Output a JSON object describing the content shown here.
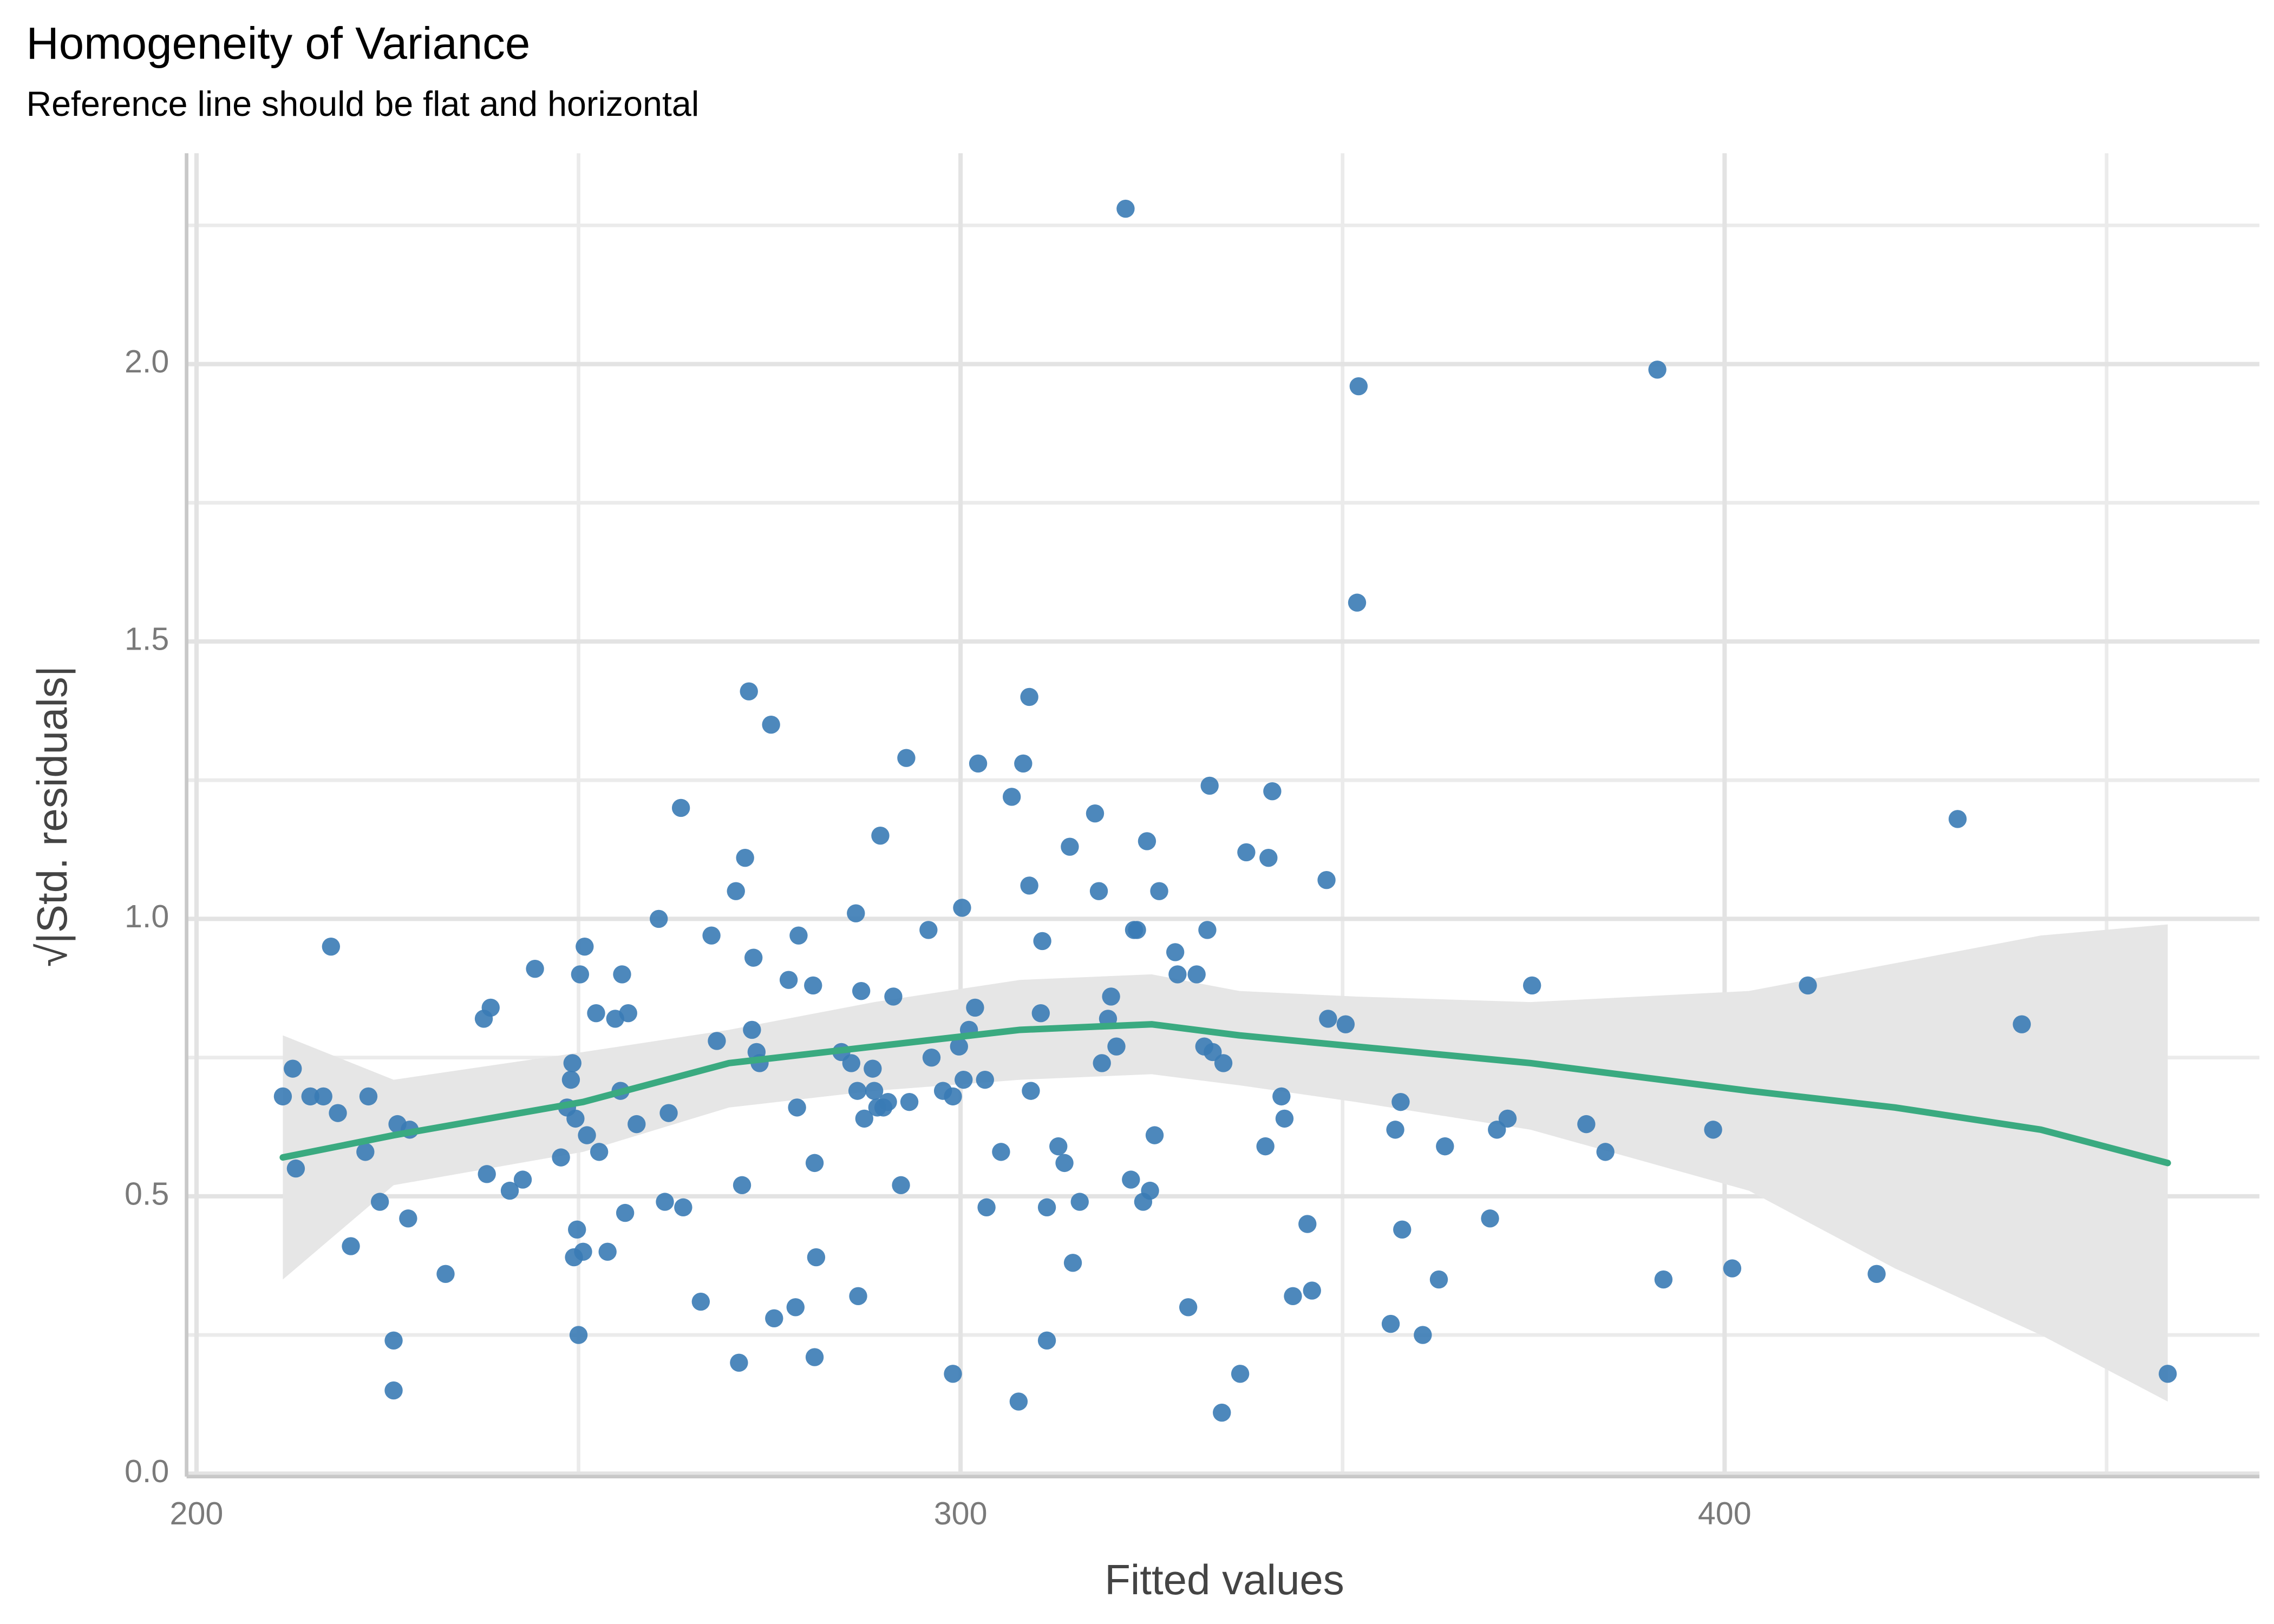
{
  "chart_data": {
    "type": "scatter",
    "title": "Homogeneity of Variance",
    "subtitle": "Reference line should be flat and horizontal",
    "x_label": "Fitted values",
    "y_label": "√|Std. residuals|",
    "xlim": [
      198.7,
      470
    ],
    "ylim": [
      0,
      2.38
    ],
    "xticks": [
      200,
      300,
      400
    ],
    "yticks": [
      {
        "value": 0,
        "label": "0.0"
      },
      {
        "value": 0.5,
        "label": "0.5"
      },
      {
        "value": 1,
        "label": "1.0"
      },
      {
        "value": 1.5,
        "label": "1.5"
      },
      {
        "value": 2,
        "label": "2.0"
      }
    ],
    "xminor": [
      250,
      350,
      450
    ],
    "yminor": [
      0.25,
      0.75,
      1.25,
      1.75,
      2.25
    ],
    "grid": true,
    "color": "#3a7bb5",
    "x": [
      211.3,
      212.6,
      213.0,
      214.9,
      216.6,
      217.6,
      218.5,
      220.2,
      222.1,
      222.5,
      224.0,
      225.8,
      225.8,
      226.3,
      227.9,
      227.7,
      232.6,
      237.6,
      238.5,
      238.0,
      241.0,
      242.7,
      244.3,
      247.7,
      248.5,
      249.0,
      249.2,
      249.4,
      249.8,
      249.6,
      250.2,
      250.0,
      250.8,
      250.6,
      251.1,
      252.3,
      252.7,
      253.8,
      254.8,
      255.5,
      255.7,
      256.1,
      256.5,
      257.6,
      260.5,
      261.3,
      261.8,
      263.4,
      263.7,
      266.0,
      267.4,
      268.1,
      270.6,
      271.0,
      271.4,
      271.8,
      272.3,
      272.7,
      272.9,
      273.3,
      273.7,
      275.2,
      275.6,
      277.5,
      278.4,
      278.6,
      278.8,
      280.7,
      280.9,
      281.1,
      280.9,
      284.4,
      285.7,
      286.3,
      286.5,
      286.6,
      287.0,
      287.4,
      288.5,
      288.7,
      289.1,
      289.5,
      289.9,
      290.5,
      291.2,
      292.2,
      292.9,
      293.3,
      295.8,
      296.2,
      297.7,
      299.0,
      299.0,
      299.8,
      300.2,
      300.4,
      301.1,
      301.9,
      302.3,
      303.2,
      303.4,
      305.3,
      306.7,
      307.6,
      308.2,
      309.0,
      309.0,
      309.2,
      310.5,
      310.7,
      311.3,
      311.3,
      312.8,
      313.6,
      314.3,
      314.7,
      315.6,
      317.6,
      318.1,
      318.5,
      319.3,
      319.7,
      320.4,
      321.6,
      322.3,
      322.7,
      323.1,
      323.9,
      324.4,
      324.8,
      325.4,
      326.0,
      328.1,
      328.4,
      329.8,
      330.9,
      331.9,
      332.3,
      332.6,
      333.0,
      334.2,
      334.4,
      336.6,
      337.4,
      339.9,
      340.3,
      340.8,
      342.0,
      342.4,
      343.5,
      345.4,
      346.0,
      347.9,
      348.1,
      350.4,
      352.1,
      351.9,
      356.3,
      356.9,
      357.6,
      357.8,
      360.5,
      362.6,
      363.4,
      369.3,
      370.2,
      371.6,
      374.8,
      381.9,
      384.4,
      391.2,
      392.0,
      398.5,
      401.0,
      410.9,
      419.9,
      430.5,
      438.9,
      458.0
    ],
    "y": [
      0.68,
      0.73,
      0.55,
      0.68,
      0.68,
      0.95,
      0.65,
      0.41,
      0.58,
      0.68,
      0.49,
      0.24,
      0.15,
      0.63,
      0.62,
      0.46,
      0.36,
      0.82,
      0.84,
      0.54,
      0.51,
      0.53,
      0.91,
      0.57,
      0.66,
      0.71,
      0.74,
      0.39,
      0.44,
      0.64,
      0.9,
      0.25,
      0.95,
      0.4,
      0.61,
      0.83,
      0.58,
      0.4,
      0.82,
      0.69,
      0.9,
      0.47,
      0.83,
      0.63,
      1.0,
      0.49,
      0.65,
      1.2,
      0.48,
      0.31,
      0.97,
      0.78,
      1.05,
      0.2,
      0.52,
      1.11,
      1.41,
      0.8,
      0.93,
      0.76,
      0.74,
      1.35,
      0.28,
      0.89,
      0.3,
      0.66,
      0.97,
      0.88,
      0.56,
      0.39,
      0.21,
      0.76,
      0.74,
      1.01,
      0.69,
      0.32,
      0.87,
      0.64,
      0.73,
      0.69,
      0.66,
      1.15,
      0.66,
      0.67,
      0.86,
      0.52,
      1.29,
      0.67,
      0.98,
      0.75,
      0.69,
      0.68,
      0.18,
      0.77,
      1.02,
      0.71,
      0.8,
      0.84,
      1.28,
      0.71,
      0.48,
      0.58,
      1.22,
      0.13,
      1.28,
      1.06,
      1.4,
      0.69,
      0.83,
      0.96,
      0.48,
      0.24,
      0.59,
      0.56,
      1.13,
      0.38,
      0.49,
      1.19,
      1.05,
      0.74,
      0.82,
      0.86,
      0.77,
      2.28,
      0.53,
      0.98,
      0.98,
      0.49,
      1.14,
      0.51,
      0.61,
      1.05,
      0.94,
      0.9,
      0.3,
      0.9,
      0.77,
      0.98,
      1.24,
      0.76,
      0.11,
      0.74,
      0.18,
      1.12,
      0.59,
      1.11,
      1.23,
      0.68,
      0.64,
      0.32,
      0.45,
      0.33,
      1.07,
      0.82,
      0.81,
      1.96,
      1.57,
      0.27,
      0.62,
      0.67,
      0.44,
      0.25,
      0.35,
      0.59,
      0.46,
      0.62,
      0.64,
      0.88,
      0.63,
      0.58,
      1.99,
      0.35,
      0.62,
      0.37,
      0.88,
      0.36,
      1.18,
      0.81,
      0.18
    ],
    "smooth": {
      "color": "#3aaa80",
      "band_color": "#e6e6e6",
      "x": [
        211.3,
        225.8,
        250.6,
        269.7,
        288.7,
        307.8,
        325.0,
        336.5,
        351.7,
        374.6,
        403.2,
        422.3,
        441.4,
        458.0
      ],
      "y": [
        0.57,
        0.61,
        0.67,
        0.74,
        0.77,
        0.8,
        0.81,
        0.79,
        0.77,
        0.74,
        0.69,
        0.66,
        0.62,
        0.56
      ],
      "upper": [
        0.79,
        0.71,
        0.76,
        0.8,
        0.85,
        0.89,
        0.9,
        0.87,
        0.86,
        0.85,
        0.87,
        0.92,
        0.97,
        0.99
      ],
      "lower": [
        0.35,
        0.52,
        0.58,
        0.66,
        0.69,
        0.71,
        0.72,
        0.7,
        0.67,
        0.62,
        0.51,
        0.37,
        0.25,
        0.13
      ]
    }
  }
}
